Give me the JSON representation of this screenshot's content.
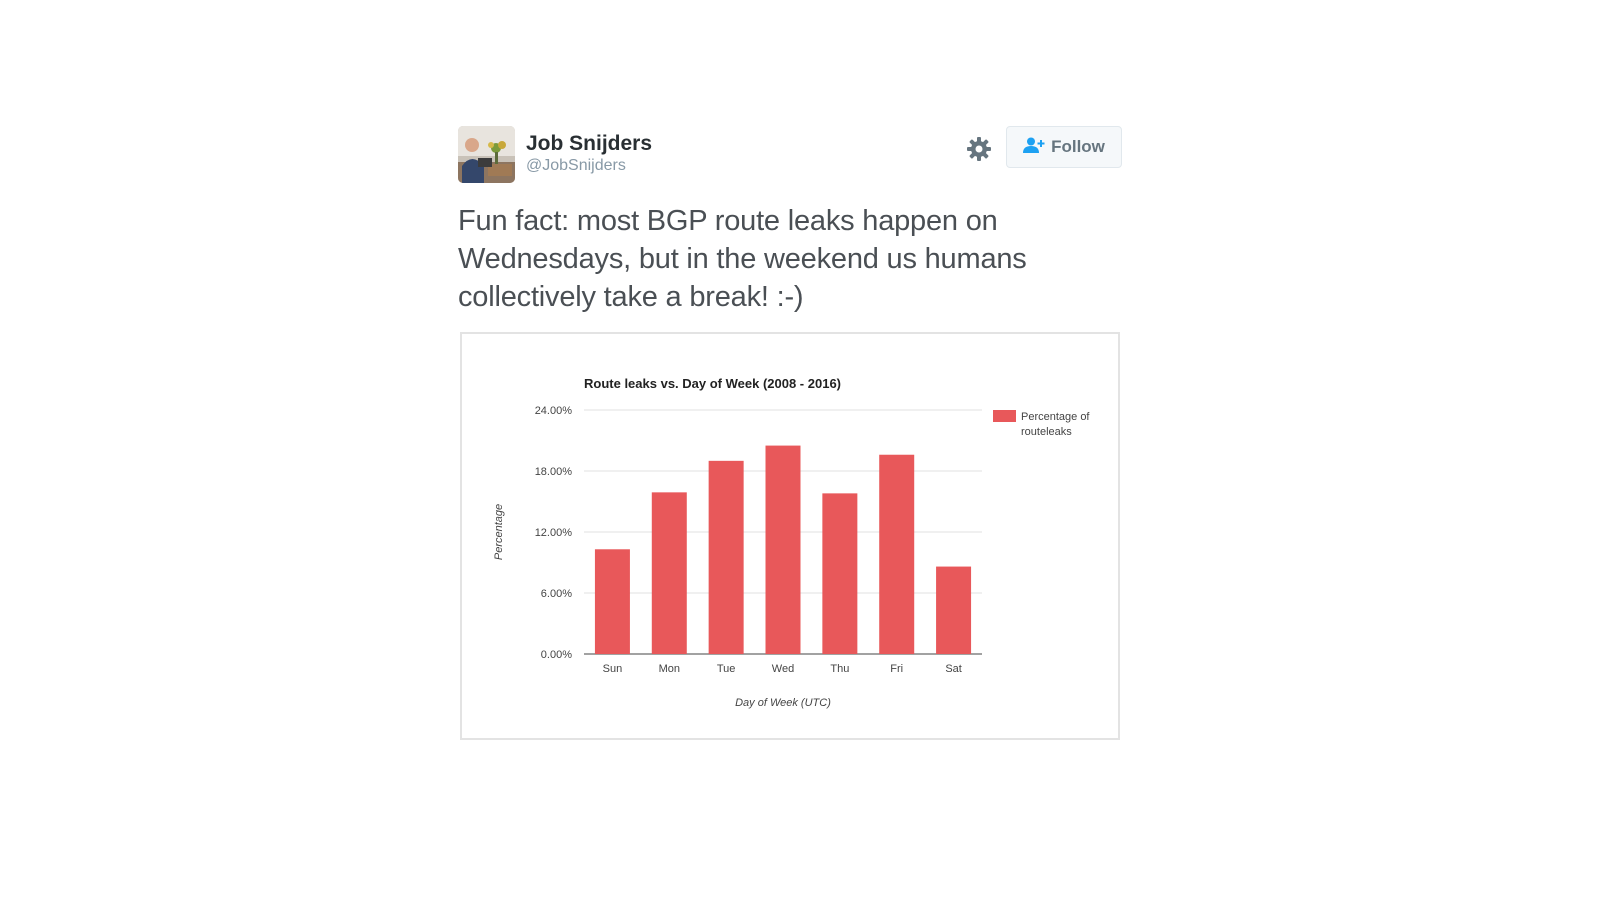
{
  "tweet": {
    "author": {
      "display_name": "Job Snijders",
      "handle": "@JobSnijders",
      "avatar": "avatar-photo"
    },
    "settings_icon": "gear-icon",
    "follow_button": {
      "label": "Follow",
      "icon": "add-user-icon",
      "icon_color": "#1da1f2"
    },
    "text": "Fun fact: most BGP route leaks happen on Wednesdays, but in the weekend us humans collectively take a break! :-)"
  },
  "colors": {
    "bar": "#e8585a",
    "text_primary": "#292f33",
    "text_secondary": "#8899a6"
  },
  "chart_data": {
    "type": "bar",
    "title": "Route leaks vs. Day of Week (2008 - 2016)",
    "xlabel": "Day of Week (UTC)",
    "ylabel": "Percentage",
    "categories": [
      "Sun",
      "Mon",
      "Tue",
      "Wed",
      "Thu",
      "Fri",
      "Sat"
    ],
    "series": [
      {
        "name": "Percentage of routeleaks",
        "values": [
          10.3,
          15.9,
          19.0,
          20.5,
          15.8,
          19.6,
          8.6
        ]
      }
    ],
    "ylim": [
      0,
      24
    ],
    "yticks": [
      "0.00%",
      "6.00%",
      "12.00%",
      "18.00%",
      "24.00%"
    ],
    "ytick_values": [
      0,
      6,
      12,
      18,
      24
    ],
    "legend": [
      "Percentage of",
      "routeleaks"
    ],
    "legend_position": "top-right",
    "grid": true
  }
}
